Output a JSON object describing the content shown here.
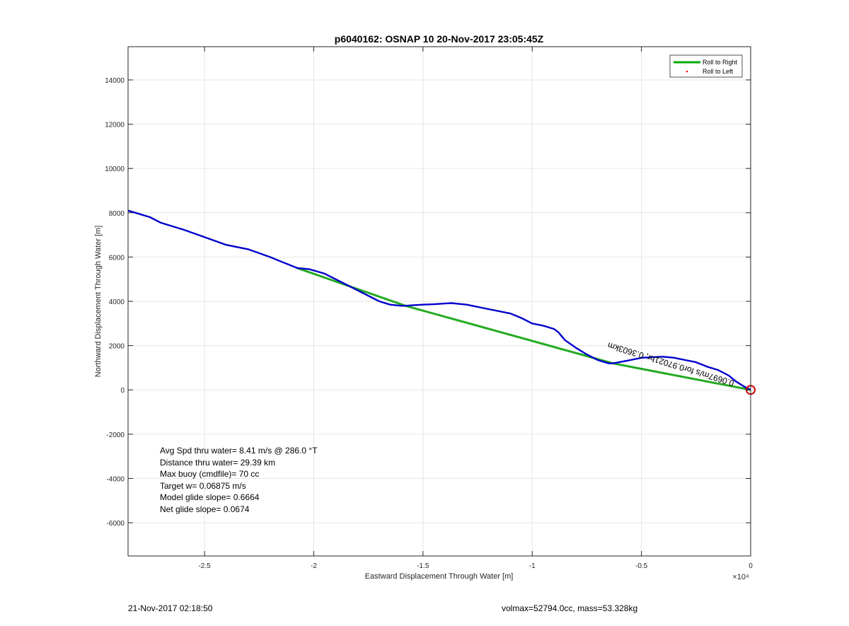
{
  "chart_data": {
    "type": "line",
    "title": "p6040162: OSNAP 10 20-Nov-2017 23:05:45Z",
    "xlabel": "Eastward Displacement Through Water [m]",
    "ylabel": "Northward Displacement Through Water [m]",
    "x_multiplier": "×10⁴",
    "xlim": [
      -2.85,
      0
    ],
    "ylim": [
      -7500,
      15500
    ],
    "xticks": [
      -2.5,
      -2,
      -1.5,
      -1,
      -0.5,
      0
    ],
    "xtick_labels": [
      "-2.5",
      "-2",
      "-1.5",
      "-1",
      "-0.5",
      "0"
    ],
    "yticks": [
      -6000,
      -4000,
      -2000,
      0,
      2000,
      4000,
      6000,
      8000,
      10000,
      12000,
      14000
    ],
    "ytick_labels": [
      "-6000",
      "-4000",
      "-2000",
      "0",
      "2000",
      "4000",
      "6000",
      "8000",
      "10000",
      "12000",
      "14000"
    ],
    "grid": true,
    "legend_position": "top-right",
    "legend": [
      {
        "label": "Roll to Right",
        "color": "#00aa00",
        "style": "line"
      },
      {
        "label": "Roll to Left",
        "color": "#ff0000",
        "style": "point"
      }
    ],
    "series": [
      {
        "name": "Roll to Right",
        "color": "#22aa22",
        "x": [
          -2.075,
          -1.58,
          -0.63,
          0
        ],
        "y": [
          5500,
          3800,
          1200,
          0
        ]
      },
      {
        "color": "#0000cc",
        "x": [
          -2.85,
          -2.8,
          -2.75,
          -2.7,
          -2.6,
          -2.5,
          -2.4,
          -2.3,
          -2.2,
          -2.15,
          -2.1,
          -2.075,
          -2.02,
          -1.95,
          -1.9,
          -1.85,
          -1.8,
          -1.7,
          -1.65,
          -1.6,
          -1.58,
          -1.55,
          -1.5,
          -1.45,
          -1.4,
          -1.37,
          -1.3,
          -1.2,
          -1.1,
          -1.05,
          -1.0,
          -0.95,
          -0.9,
          -0.88,
          -0.85,
          -0.8,
          -0.75,
          -0.7,
          -0.65,
          -0.63,
          -0.55,
          -0.5,
          -0.45,
          -0.4,
          -0.35,
          -0.3,
          -0.25,
          -0.2,
          -0.15,
          -0.1,
          -0.07,
          -0.03,
          0
        ],
        "y": [
          8100,
          7950,
          7800,
          7550,
          7250,
          6900,
          6550,
          6350,
          6000,
          5800,
          5600,
          5500,
          5450,
          5250,
          5000,
          4750,
          4500,
          4000,
          3850,
          3800,
          3800,
          3820,
          3850,
          3870,
          3900,
          3920,
          3850,
          3650,
          3450,
          3250,
          3000,
          2900,
          2750,
          2600,
          2250,
          1900,
          1600,
          1350,
          1200,
          1200,
          1350,
          1450,
          1480,
          1500,
          1450,
          1350,
          1250,
          1050,
          900,
          650,
          400,
          150,
          0
        ]
      }
    ],
    "marker": {
      "type": "circle",
      "color": "#cc0000",
      "x": 0,
      "y": 0
    },
    "annotation": {
      "text": "0.0697m/s for0.97021hr, 0.3603km",
      "x": -0.65,
      "y": 2150,
      "rotation": 197
    },
    "stats_box": [
      "Avg Spd thru water=  8.41 m/s @ 286.0 °T",
      "Distance thru water= 29.39 km",
      "Max buoy (cmdfile)= 70 cc",
      "Target w= 0.06875 m/s",
      "Model glide slope= 0.6664",
      "Net glide slope= 0.0674"
    ]
  },
  "footer": {
    "left": "21-Nov-2017 02:18:50",
    "right": "volmax=52794.0cc, mass=53.328kg"
  }
}
